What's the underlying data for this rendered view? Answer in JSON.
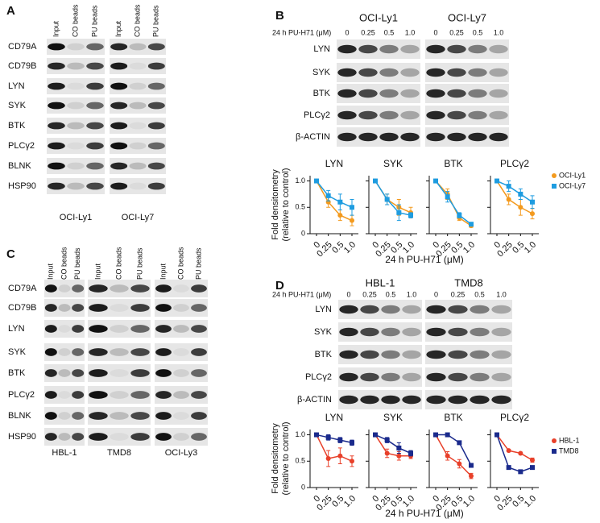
{
  "panel_a": {
    "label": "A",
    "columns": [
      "Input",
      "CO beads",
      "PU beads"
    ],
    "rows": [
      "CD79A",
      "CD79B",
      "LYN",
      "SYK",
      "BTK",
      "PLCγ2",
      "BLNK",
      "HSP90"
    ],
    "cell_lines": [
      "OCI-Ly1",
      "OCI-Ly7"
    ]
  },
  "panel_b": {
    "label": "B",
    "cell_lines": [
      {
        "name": "OCI-Ly1",
        "color": "#f39a1e",
        "marker": "circle"
      },
      {
        "name": "OCI-Ly7",
        "color": "#1e9ce0",
        "marker": "square"
      }
    ],
    "dose_label": "24 h PU-H71 (μM)",
    "doses": [
      "0",
      "0.25",
      "0.5",
      "1.0"
    ],
    "rows": [
      "LYN",
      "SYK",
      "BTK",
      "PLCγ2",
      "β-ACTIN"
    ],
    "ylabel": [
      "Fold densitometry",
      "(relative to control)"
    ],
    "xlabel": "24 h PU-H71 (μM)"
  },
  "panel_c": {
    "label": "C",
    "columns": [
      "Input",
      "CO beads",
      "PU beads"
    ],
    "rows": [
      "CD79A",
      "CD79B",
      "LYN",
      "SYK",
      "BTK",
      "PLCγ2",
      "BLNK",
      "HSP90"
    ],
    "cell_lines": [
      "HBL-1",
      "TMD8",
      "OCI-Ly3"
    ]
  },
  "panel_d": {
    "label": "D",
    "cell_lines": [
      {
        "name": "HBL-1",
        "color": "#e8402a",
        "marker": "circle"
      },
      {
        "name": "TMD8",
        "color": "#1a2a8c",
        "marker": "square"
      }
    ],
    "dose_label": "24 h PU-H71 (μM)",
    "doses": [
      "0",
      "0.25",
      "0.5",
      "1.0"
    ],
    "rows": [
      "LYN",
      "SYK",
      "BTK",
      "PLCγ2",
      "β-ACTIN"
    ],
    "ylabel": [
      "Fold densitometry",
      "(relative to control)"
    ],
    "xlabel": "24 h PU-H71 (μM)"
  },
  "chart_data": [
    {
      "type": "line",
      "title": "LYN",
      "categories": [
        "0",
        "0.25",
        "0.5",
        "1.0"
      ],
      "ylim": [
        0,
        1.1
      ],
      "yticks": [
        0,
        0.5,
        {
          "value": 1,
          "label": "1.0"
        }
      ],
      "series": [
        {
          "color": "#f39a1e",
          "marker": "circle",
          "values": [
            1,
            0.6,
            0.35,
            0.25
          ],
          "errors": [
            null,
            0.1,
            0.1,
            0.1
          ]
        },
        {
          "color": "#1e9ce0",
          "marker": "square",
          "values": [
            1,
            0.72,
            0.6,
            0.5
          ],
          "errors": [
            null,
            0.1,
            0.15,
            0.15
          ]
        }
      ]
    },
    {
      "type": "line",
      "title": "SYK",
      "categories": [
        "0",
        "0.25",
        "0.5",
        "1.0"
      ],
      "ylim": [
        0,
        1.1
      ],
      "yticks": [
        0,
        0.5,
        {
          "value": 1,
          "label": "1.0"
        }
      ],
      "series": [
        {
          "color": "#f39a1e",
          "marker": "circle",
          "values": [
            1,
            0.65,
            0.5,
            0.4
          ],
          "errors": [
            null,
            0.1,
            0.15,
            0.1
          ]
        },
        {
          "color": "#1e9ce0",
          "marker": "square",
          "values": [
            1,
            0.65,
            0.4,
            0.35
          ],
          "errors": [
            null,
            0.1,
            0.15,
            0.05
          ]
        }
      ]
    },
    {
      "type": "line",
      "title": "BTK",
      "categories": [
        "0",
        "0.25",
        "0.5",
        "1.0"
      ],
      "ylim": [
        0,
        1.1
      ],
      "yticks": [
        0,
        0.5,
        {
          "value": 1,
          "label": "1.0"
        }
      ],
      "series": [
        {
          "color": "#f39a1e",
          "marker": "circle",
          "values": [
            1,
            0.75,
            0.3,
            0.15
          ],
          "errors": [
            null,
            0.1,
            0.05,
            0.03
          ]
        },
        {
          "color": "#1e9ce0",
          "marker": "square",
          "values": [
            1,
            0.7,
            0.35,
            0.18
          ],
          "errors": [
            null,
            0.1,
            0.05,
            0.03
          ]
        }
      ]
    },
    {
      "type": "line",
      "title": "PLCγ2",
      "categories": [
        "0",
        "0.25",
        "0.5",
        "1.0"
      ],
      "ylim": [
        0,
        1.1
      ],
      "yticks": [
        0,
        0.5,
        {
          "value": 1,
          "label": "1.0"
        }
      ],
      "series": [
        {
          "color": "#f39a1e",
          "marker": "circle",
          "values": [
            1,
            0.65,
            0.5,
            0.38
          ],
          "errors": [
            null,
            0.1,
            0.15,
            0.1
          ]
        },
        {
          "color": "#1e9ce0",
          "marker": "square",
          "values": [
            1,
            0.9,
            0.75,
            0.6
          ],
          "errors": [
            null,
            0.1,
            0.1,
            0.12
          ]
        }
      ]
    },
    {
      "type": "line",
      "title": "LYN",
      "categories": [
        "0",
        "0.25",
        "0.5",
        "1.0"
      ],
      "ylim": [
        0,
        1.1
      ],
      "yticks": [
        0,
        0.5,
        {
          "value": 1,
          "label": "1.0"
        }
      ],
      "series": [
        {
          "color": "#e8402a",
          "marker": "circle",
          "values": [
            1,
            0.55,
            0.6,
            0.5
          ],
          "errors": [
            null,
            0.15,
            0.15,
            0.1
          ]
        },
        {
          "color": "#1a2a8c",
          "marker": "square",
          "values": [
            1,
            0.95,
            0.9,
            0.85
          ],
          "errors": [
            null,
            0.05,
            0.05,
            0.05
          ]
        }
      ]
    },
    {
      "type": "line",
      "title": "SYK",
      "categories": [
        "0",
        "0.25",
        "0.5",
        "1.0"
      ],
      "ylim": [
        0,
        1.1
      ],
      "yticks": [
        0,
        0.5,
        {
          "value": 1,
          "label": "1.0"
        }
      ],
      "series": [
        {
          "color": "#e8402a",
          "marker": "circle",
          "values": [
            1,
            0.65,
            0.6,
            0.6
          ],
          "errors": [
            null,
            0.08,
            0.08,
            0.05
          ]
        },
        {
          "color": "#1a2a8c",
          "marker": "square",
          "values": [
            1,
            0.9,
            0.75,
            0.65
          ],
          "errors": [
            null,
            0.05,
            0.1,
            0.05
          ]
        }
      ]
    },
    {
      "type": "line",
      "title": "BTK",
      "categories": [
        "0",
        "0.25",
        "0.5",
        "1.0"
      ],
      "ylim": [
        0,
        1.1
      ],
      "yticks": [
        0,
        0.5,
        {
          "value": 1,
          "label": "1.0"
        }
      ],
      "series": [
        {
          "color": "#e8402a",
          "marker": "circle",
          "values": [
            1,
            0.6,
            0.45,
            0.22
          ],
          "errors": [
            null,
            0.08,
            0.08,
            0.05
          ]
        },
        {
          "color": "#1a2a8c",
          "marker": "square",
          "values": [
            1,
            1,
            0.85,
            0.42
          ],
          "errors": [
            null,
            0.03,
            0.03,
            0.02
          ]
        }
      ]
    },
    {
      "type": "line",
      "title": "PLCγ2",
      "categories": [
        "0",
        "0.25",
        "0.5",
        "1.0"
      ],
      "ylim": [
        0,
        1.1
      ],
      "yticks": [
        0,
        0.5,
        {
          "value": 1,
          "label": "1.0"
        }
      ],
      "series": [
        {
          "color": "#e8402a",
          "marker": "circle",
          "values": [
            1,
            0.7,
            0.65,
            0.52
          ],
          "errors": [
            null,
            0.02,
            0.02,
            0.04
          ]
        },
        {
          "color": "#1a2a8c",
          "marker": "square",
          "values": [
            1,
            0.38,
            0.3,
            0.38
          ],
          "errors": [
            null,
            0.02,
            0.02,
            0.02
          ]
        }
      ]
    }
  ]
}
